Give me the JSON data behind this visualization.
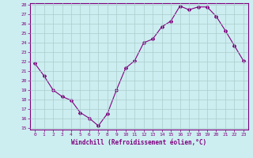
{
  "x": [
    0,
    1,
    2,
    3,
    4,
    5,
    6,
    7,
    8,
    9,
    10,
    11,
    12,
    13,
    14,
    15,
    16,
    17,
    18,
    19,
    20,
    21,
    22,
    23
  ],
  "y": [
    21.8,
    20.5,
    19.0,
    18.3,
    17.9,
    16.6,
    16.0,
    15.2,
    16.5,
    19.0,
    21.3,
    22.1,
    24.0,
    24.4,
    25.7,
    26.3,
    27.9,
    27.5,
    27.8,
    27.8,
    26.8,
    25.3,
    23.7,
    22.1
  ],
  "line_color": "#800080",
  "marker": "D",
  "marker_size": 2,
  "bg_color": "#cceef0",
  "grid_color": "#aacccc",
  "xlabel": "Windchill (Refroidissement éolien,°C)",
  "ylim": [
    15,
    28
  ],
  "xlim": [
    -0.5,
    23.5
  ],
  "yticks": [
    15,
    16,
    17,
    18,
    19,
    20,
    21,
    22,
    23,
    24,
    25,
    26,
    27,
    28
  ],
  "xticks": [
    0,
    1,
    2,
    3,
    4,
    5,
    6,
    7,
    8,
    9,
    10,
    11,
    12,
    13,
    14,
    15,
    16,
    17,
    18,
    19,
    20,
    21,
    22,
    23
  ],
  "tick_color": "#800080",
  "label_color": "#800080",
  "spine_color": "#800080"
}
